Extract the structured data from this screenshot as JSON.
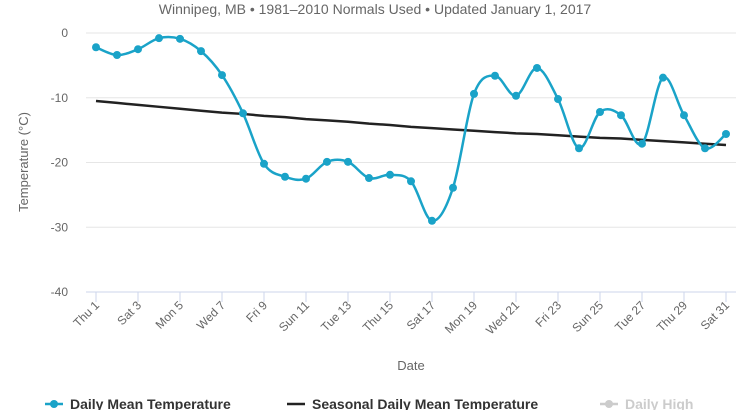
{
  "chart_data": {
    "type": "line",
    "subtitle": "Winnipeg, MB • 1981–2010 Normals Used • Updated January 1, 2017",
    "ylabel": "Temperature (°C)",
    "xlabel": "Date",
    "categories": [
      "Thu 1",
      null,
      "Sat 3",
      null,
      "Mon 5",
      null,
      "Wed 7",
      null,
      "Fri 9",
      null,
      "Sun 11",
      null,
      "Tue 13",
      null,
      "Thu 15",
      null,
      "Sat 17",
      null,
      "Mon 19",
      null,
      "Wed 21",
      null,
      "Fri 23",
      null,
      "Sun 25",
      null,
      "Tue 27",
      null,
      "Thu 29",
      null,
      "Sat 31"
    ],
    "series": [
      {
        "name": "Daily Mean Temperature",
        "color": "#1aa3c8",
        "smooth": true,
        "markers": true,
        "values": [
          -2.2,
          -3.4,
          -2.5,
          -0.8,
          -0.9,
          -2.8,
          -6.5,
          -12.4,
          -20.2,
          -22.2,
          -22.5,
          -19.9,
          -19.9,
          -22.4,
          -21.9,
          -22.9,
          -29.0,
          -23.9,
          -9.4,
          -6.6,
          -9.7,
          -5.4,
          -10.2,
          -17.8,
          -12.2,
          -12.7,
          -17.1,
          -6.9,
          -12.7,
          -17.8,
          -15.6
        ]
      },
      {
        "name": "Seasonal Daily Mean Temperature",
        "color": "#222222",
        "smooth": false,
        "markers": false,
        "values": [
          -10.5,
          -10.8,
          -11.1,
          -11.4,
          -11.7,
          -12.0,
          -12.3,
          -12.5,
          -12.8,
          -13.0,
          -13.3,
          -13.5,
          -13.7,
          -14.0,
          -14.2,
          -14.5,
          -14.7,
          -14.9,
          -15.1,
          -15.3,
          -15.5,
          -15.6,
          -15.8,
          -16.0,
          -16.2,
          -16.3,
          -16.5,
          -16.7,
          -16.9,
          -17.1,
          -17.3
        ]
      }
    ],
    "hidden_series": [
      {
        "name": "Daily High",
        "color": "#cccccc"
      }
    ],
    "ylim": [
      -40,
      0
    ],
    "yticks": [
      0,
      -10,
      -20,
      -30,
      -40
    ],
    "grid": true
  }
}
